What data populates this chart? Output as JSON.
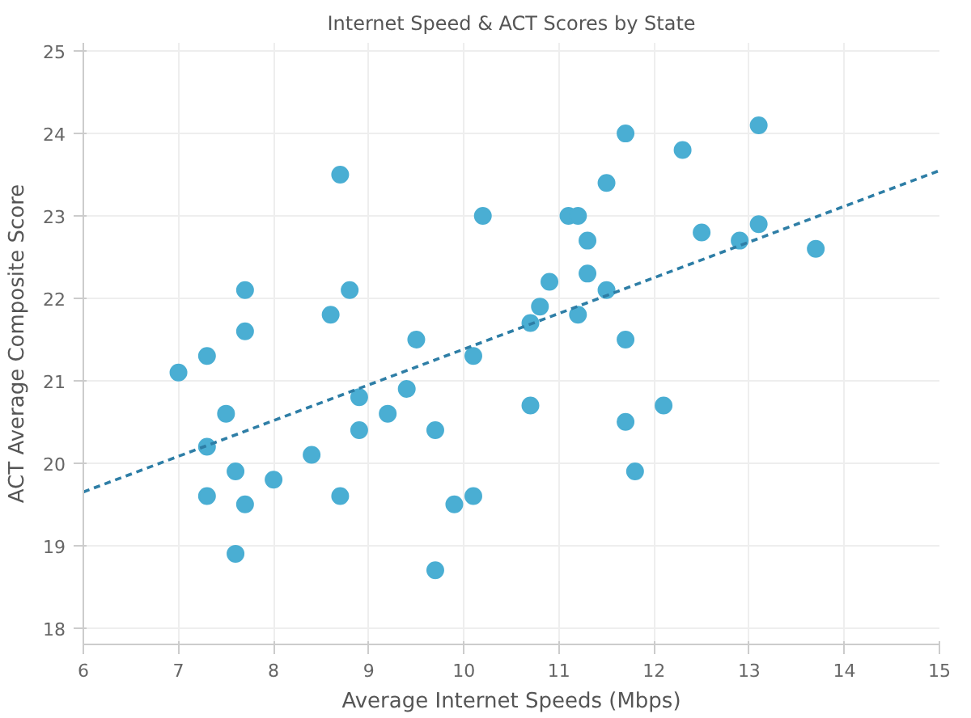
{
  "chart_data": {
    "type": "scatter",
    "title": "Internet Speed & ACT Scores by State",
    "xlabel": "Average Internet Speeds (Mbps)",
    "ylabel": "ACT Average Composite Score",
    "xlim": [
      6,
      15
    ],
    "ylim": [
      17.8,
      25.1
    ],
    "xticks": [
      6,
      7,
      8,
      9,
      10,
      11,
      12,
      13,
      14,
      15
    ],
    "yticks": [
      18,
      19,
      20,
      21,
      22,
      23,
      24,
      25
    ],
    "grid": true,
    "series": [
      {
        "color": "#4aaed3",
        "marker": "circle",
        "x": [
          7.0,
          7.3,
          7.3,
          7.3,
          7.5,
          7.6,
          7.6,
          7.7,
          7.7,
          7.7,
          8.0,
          8.4,
          8.6,
          8.7,
          8.7,
          8.8,
          8.9,
          8.9,
          9.2,
          9.4,
          9.5,
          9.7,
          9.7,
          9.9,
          10.1,
          10.1,
          10.2,
          10.7,
          10.7,
          10.8,
          10.9,
          11.1,
          11.2,
          11.2,
          11.3,
          11.3,
          11.5,
          11.5,
          11.7,
          11.7,
          11.7,
          11.8,
          12.1,
          12.3,
          12.5,
          12.9,
          13.1,
          13.1,
          13.7
        ],
        "values": [
          21.1,
          21.3,
          20.2,
          19.6,
          20.6,
          19.9,
          18.9,
          22.1,
          21.6,
          19.5,
          19.8,
          20.1,
          21.8,
          23.5,
          19.6,
          22.1,
          20.8,
          20.4,
          20.6,
          20.9,
          21.5,
          20.4,
          18.7,
          19.5,
          21.3,
          19.6,
          23.0,
          21.7,
          20.7,
          21.9,
          22.2,
          23.0,
          23.0,
          21.8,
          22.7,
          22.3,
          23.4,
          22.1,
          24.0,
          21.5,
          20.5,
          19.9,
          20.7,
          23.8,
          22.8,
          22.7,
          24.1,
          22.9,
          22.6
        ]
      },
      {
        "type": "line",
        "color": "#2e7ea6",
        "line_style": "dashed",
        "x": [
          6,
          15
        ],
        "values": [
          19.65,
          23.55
        ]
      }
    ]
  }
}
